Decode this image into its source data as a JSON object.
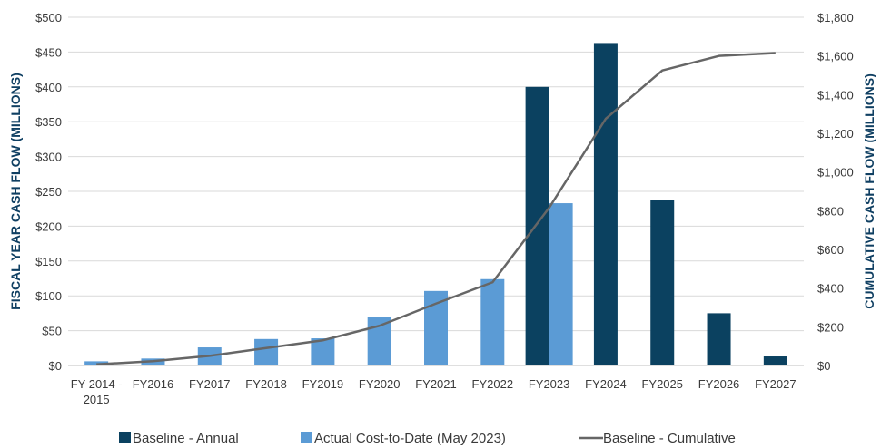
{
  "chart_data": {
    "type": "bar",
    "categories": [
      [
        "FY 2014 -",
        "2015"
      ],
      [
        "FY2016"
      ],
      [
        "FY2017"
      ],
      [
        "FY2018"
      ],
      [
        "FY2019"
      ],
      [
        "FY2020"
      ],
      [
        "FY2021"
      ],
      [
        "FY2022"
      ],
      [
        "FY2023"
      ],
      [
        "FY2024"
      ],
      [
        "FY2025"
      ],
      [
        "FY2026"
      ],
      [
        "FY2027"
      ]
    ],
    "ylabel": "FISCAL YEAR CASH FLOW (MILLIONS)",
    "y2label": "CUMULATIVE CASH FLOW (MILLIONS)",
    "ylim": [
      0,
      500
    ],
    "y2lim": [
      0,
      1800
    ],
    "yticks": [
      "$0",
      "$50",
      "$100",
      "$150",
      "$200",
      "$250",
      "$300",
      "$350",
      "$400",
      "$450",
      "$500"
    ],
    "y2ticks": [
      "$0",
      "$200",
      "$400",
      "$600",
      "$800",
      "$1,000",
      "$1,200",
      "$1,400",
      "$1,600",
      "$1,800"
    ],
    "grid": true,
    "legend_position": "bottom",
    "series": [
      {
        "name": "Baseline - Annual",
        "kind": "bar",
        "color": "#0b4160",
        "values": [
          null,
          null,
          null,
          null,
          null,
          null,
          null,
          null,
          400,
          463,
          237,
          75,
          13
        ]
      },
      {
        "name": "Actual Cost-to-Date (May 2023)",
        "kind": "bar",
        "color": "#5b9bd5",
        "values": [
          6,
          10,
          26,
          38,
          39,
          69,
          107,
          124,
          233,
          null,
          null,
          null,
          null
        ]
      },
      {
        "name": "Baseline - Cumulative",
        "kind": "line",
        "axis": "y2",
        "color": "#666666",
        "values": [
          6,
          22,
          50,
          90,
          130,
          205,
          320,
          430,
          815,
          1275,
          1525,
          1600,
          1615
        ]
      }
    ]
  }
}
